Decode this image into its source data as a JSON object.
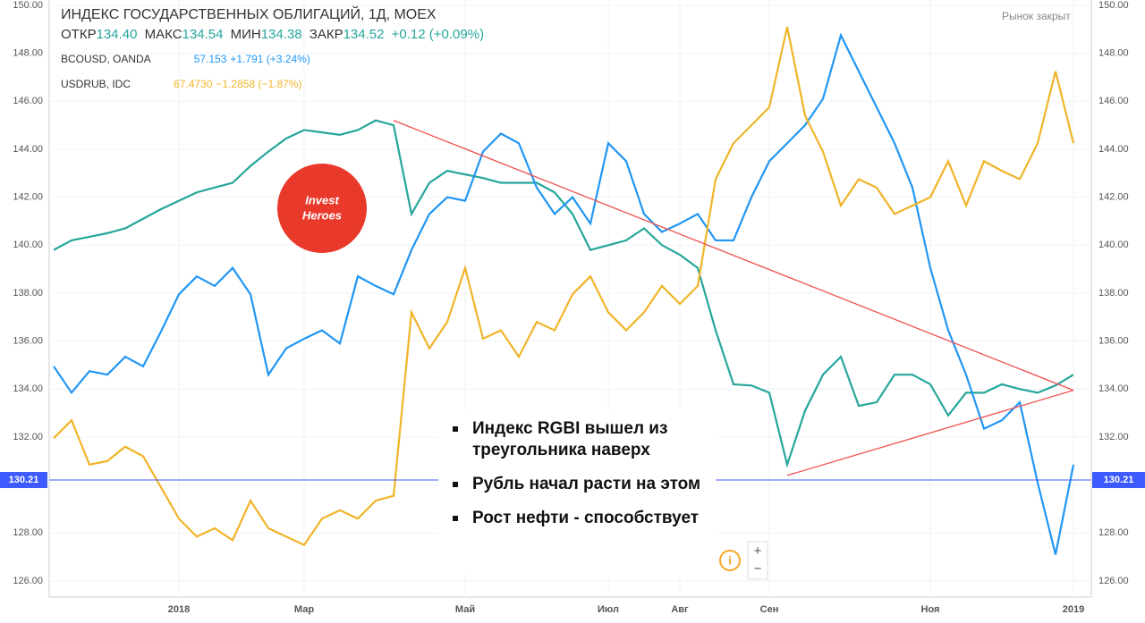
{
  "logo": [
    "Invest",
    "Heroes"
  ],
  "chart_data": {
    "type": "line",
    "title": "ИНДЕКС ГОСУДАРСТВЕННЫХ ОБЛИГАЦИЙ, 1Д, MOEX",
    "ohlc": [
      {
        "label": "ОТКР",
        "value": "134.40"
      },
      {
        "label": "МАКС",
        "value": "134.54"
      },
      {
        "label": "МИН",
        "value": "134.38"
      },
      {
        "label": "ЗАКР",
        "value": "134.52"
      }
    ],
    "change": "+0.12 (+0.09%)",
    "status": "Рынок закрыт",
    "annotations": [
      "Индекс RGBI вышел из треугольника наверх",
      "Рубль начал расти на этом",
      "Рост нефти - способствует"
    ],
    "categories": [
      null,
      null,
      null,
      null,
      null,
      null,
      null,
      "2018",
      null,
      null,
      null,
      null,
      null,
      null,
      "Мар",
      null,
      null,
      null,
      null,
      null,
      null,
      null,
      null,
      "Май",
      null,
      null,
      null,
      null,
      null,
      null,
      null,
      "Июл",
      null,
      null,
      null,
      "Авг",
      null,
      null,
      null,
      null,
      "Сен",
      null,
      null,
      null,
      null,
      null,
      null,
      null,
      null,
      "Ноя",
      null,
      null,
      null,
      null,
      null,
      null,
      null,
      "2019"
    ],
    "series": [
      {
        "name": "RGBI",
        "color": "#26a69a",
        "values": [
          139.8,
          140.2,
          140.35,
          140.5,
          140.7,
          141.1,
          141.5,
          141.85,
          142.2,
          142.4,
          142.6,
          143.3,
          143.9,
          144.45,
          144.8,
          144.7,
          144.6,
          144.8,
          145.2,
          145.0,
          141.3,
          142.6,
          143.1,
          142.95,
          142.8,
          142.6,
          142.6,
          142.6,
          142.2,
          141.3,
          139.8,
          140.0,
          140.2,
          140.7,
          140.0,
          139.6,
          139.05,
          136.45,
          134.2,
          134.15,
          133.85,
          130.85,
          133.1,
          134.6,
          135.35,
          133.3,
          133.45,
          134.6,
          134.6,
          134.2,
          132.9,
          133.85,
          133.85,
          134.2,
          134.0,
          133.85,
          134.15,
          134.6
        ]
      },
      {
        "name": "BCOUSD, OANDA",
        "color": "#2196f3",
        "last": "57.153",
        "change": "+1.791 (+3.24%)",
        "values": [
          134.95,
          133.85,
          134.75,
          134.6,
          135.35,
          134.95,
          136.4,
          137.95,
          138.7,
          138.3,
          139.05,
          137.95,
          134.6,
          135.7,
          136.1,
          136.45,
          135.9,
          138.7,
          138.3,
          137.95,
          139.8,
          141.3,
          142.0,
          141.85,
          143.9,
          144.65,
          144.25,
          142.4,
          141.3,
          142.0,
          140.9,
          144.25,
          143.5,
          141.3,
          140.55,
          140.9,
          141.3,
          140.2,
          140.2,
          142.0,
          143.5,
          144.25,
          145.0,
          146.1,
          148.75,
          147.25,
          145.75,
          144.25,
          142.4,
          139.05,
          136.45,
          134.6,
          132.35,
          132.7,
          133.45,
          130.1,
          127.1,
          130.85
        ]
      },
      {
        "name": "USDRUB, IDC",
        "color": "#f0b429",
        "last": "67.4730",
        "change": "−1.2858 (−1.87%)",
        "values": [
          131.95,
          132.7,
          130.85,
          131.0,
          131.6,
          131.2,
          129.9,
          128.6,
          127.85,
          128.2,
          127.7,
          129.35,
          128.2,
          127.85,
          127.5,
          128.6,
          128.95,
          128.6,
          129.35,
          129.55,
          137.2,
          135.7,
          136.8,
          139.05,
          136.1,
          136.45,
          135.35,
          136.8,
          136.45,
          137.95,
          138.7,
          137.2,
          136.45,
          137.2,
          138.3,
          137.55,
          138.3,
          142.75,
          144.25,
          145.0,
          145.75,
          149.1,
          145.4,
          143.9,
          141.65,
          142.75,
          142.4,
          141.3,
          141.65,
          142.0,
          143.5,
          141.65,
          143.5,
          143.1,
          142.75,
          144.25,
          147.25,
          144.25
        ]
      }
    ],
    "price_line": {
      "value": 130.21,
      "label": "130.21",
      "color": "#3d5afe"
    },
    "trendlines": [
      {
        "color": "#f05050",
        "points": [
          [
            19,
            145.2
          ],
          [
            57,
            133.95
          ]
        ]
      },
      {
        "color": "#f05050",
        "points": [
          [
            41,
            130.4
          ],
          [
            57,
            133.95
          ]
        ]
      }
    ],
    "ylim": [
      125.33,
      150.22
    ],
    "yticks": [
      {
        "value": 126,
        "label": "126.00"
      },
      {
        "value": 128,
        "label": "128.00"
      },
      {
        "value": 130,
        "label": "130.00"
      },
      {
        "value": 132,
        "label": "132.00"
      },
      {
        "value": 134,
        "label": "134.00"
      },
      {
        "value": 136,
        "label": "136.00"
      },
      {
        "value": 138,
        "label": "138.00"
      },
      {
        "value": 140,
        "label": "140.00"
      },
      {
        "value": 142,
        "label": "142.00"
      },
      {
        "value": 144,
        "label": "144.00"
      },
      {
        "value": 146,
        "label": "146.00"
      },
      {
        "value": 148,
        "label": "148.00"
      },
      {
        "value": 150,
        "label": "150.00"
      }
    ],
    "grid": true
  }
}
